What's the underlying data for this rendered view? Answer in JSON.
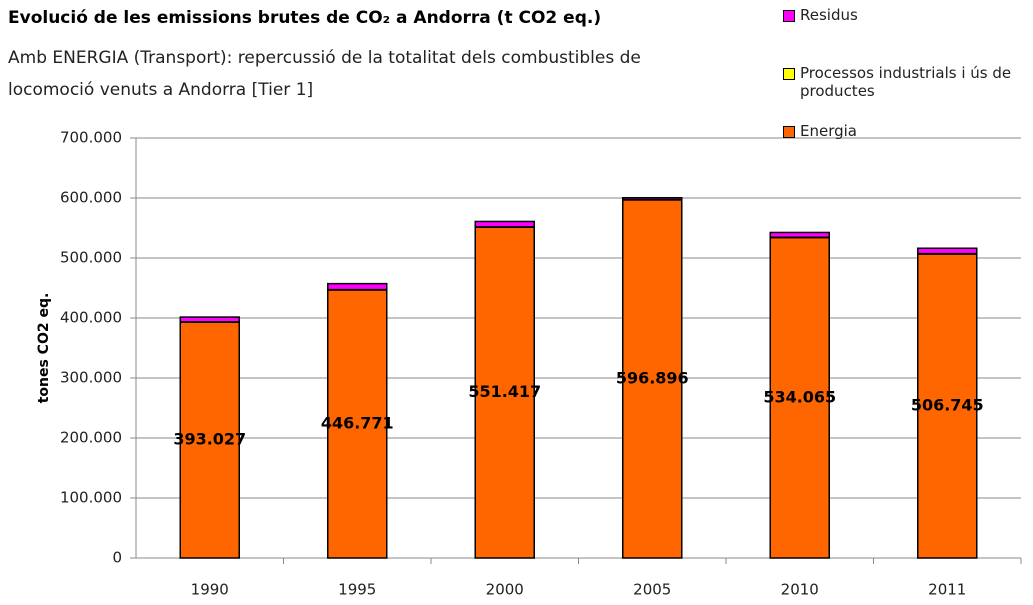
{
  "chart_data": {
    "type": "stacked_bar",
    "title": "Evolució de les emissions brutes de CO₂  a Andorra (t CO2 eq.)",
    "subtitle": [
      "Amb ENERGIA (Transport): repercussió de la totalitat dels combustibles de",
      "locomoció venuts a Andorra [Tier 1]"
    ],
    "y_label": "tones CO2 eq.",
    "categories": [
      "1990",
      "1995",
      "2000",
      "2005",
      "2010",
      "2011"
    ],
    "series": [
      {
        "name": "Energia",
        "color": "#ff6600",
        "values": [
          393027,
          446771,
          551417,
          596896,
          534065,
          506745
        ],
        "value_labels": [
          "393.027",
          "446.771",
          "551.417",
          "596.896",
          "534.065",
          "506.745"
        ]
      },
      {
        "name": "Processos industrials i ús de productes",
        "color": "#ffff00",
        "values": [
          500,
          500,
          500,
          500,
          500,
          500
        ]
      },
      {
        "name": "Residus",
        "color": "#ff00ff",
        "values": [
          8000,
          10000,
          9000,
          3000,
          8000,
          9000
        ]
      }
    ],
    "ylim": [
      0,
      700000
    ],
    "yticks": [
      0,
      {
        "value": 100000,
        "label": "100.000"
      },
      {
        "value": 200000,
        "label": "200.000"
      },
      {
        "value": 300000,
        "label": "300.000"
      },
      {
        "value": 400000,
        "label": "400.000"
      },
      {
        "value": 500000,
        "label": "500.000"
      },
      {
        "value": 600000,
        "label": "600.000"
      },
      {
        "value": 700000,
        "label": "700.000"
      }
    ],
    "grid": true
  }
}
